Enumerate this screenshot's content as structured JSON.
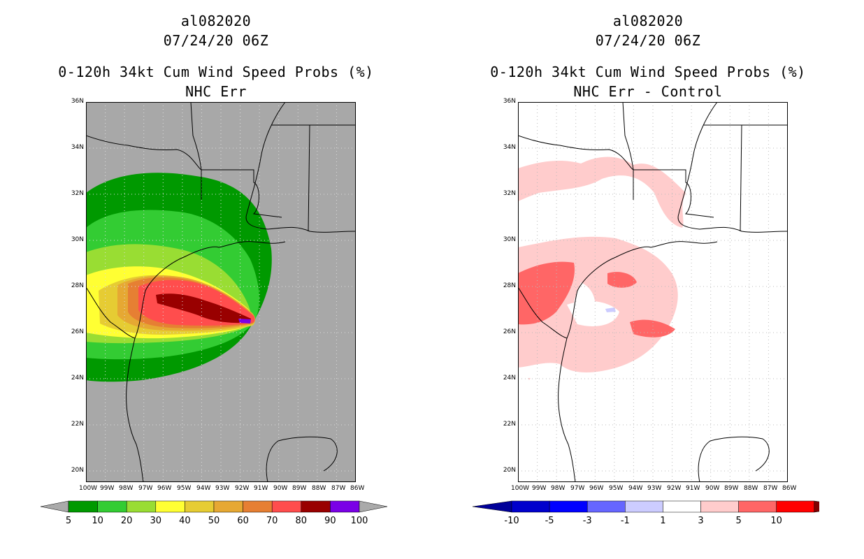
{
  "left": {
    "title_line1": "al082020",
    "title_line2": "07/24/20 06Z",
    "title_line3": "0-120h 34kt Cum Wind Speed Probs (%)",
    "title_line4": "NHC Err",
    "lat_labels": [
      "36N",
      "34N",
      "32N",
      "30N",
      "28N",
      "26N",
      "24N",
      "22N",
      "20N"
    ],
    "lon_labels": [
      "100W",
      "99W",
      "98W",
      "97W",
      "96W",
      "95W",
      "94W",
      "93W",
      "92W",
      "91W",
      "90W",
      "89W",
      "88W",
      "87W",
      "86W"
    ],
    "colorbar": {
      "labels": [
        "5",
        "10",
        "20",
        "30",
        "40",
        "50",
        "60",
        "70",
        "80",
        "90",
        "100"
      ],
      "colors": [
        "#009900",
        "#33cc33",
        "#99dd33",
        "#ffff33",
        "#e6cc33",
        "#e6a833",
        "#e67f33",
        "#ff4d4d",
        "#990000",
        "#7a00e6"
      ],
      "end_color": "#aaaaaa"
    },
    "background_color": "#a8a8a8"
  },
  "right": {
    "title_line1": "al082020",
    "title_line2": "07/24/20 06Z",
    "title_line3": "0-120h 34kt Cum Wind Speed Probs (%)",
    "title_line4": "NHC Err - Control",
    "lat_labels": [
      "36N",
      "34N",
      "32N",
      "30N",
      "28N",
      "26N",
      "24N",
      "22N",
      "20N"
    ],
    "lon_labels": [
      "100W",
      "99W",
      "98W",
      "97W",
      "96W",
      "95W",
      "94W",
      "93W",
      "92W",
      "91W",
      "90W",
      "89W",
      "88W",
      "87W",
      "86W"
    ],
    "colorbar": {
      "labels": [
        "-10",
        "-5",
        "-3",
        "-1",
        "1",
        "3",
        "5",
        "10"
      ],
      "colors": [
        "#0000cc",
        "#0000ff",
        "#6666ff",
        "#ccccff",
        "#ffffff",
        "#ffcccc",
        "#ff6666",
        "#ff0000"
      ],
      "low_end_color": "#000099",
      "high_end_color": "#800000",
      "last_color": "#ff0000"
    },
    "background_color": "#ffffff"
  }
}
